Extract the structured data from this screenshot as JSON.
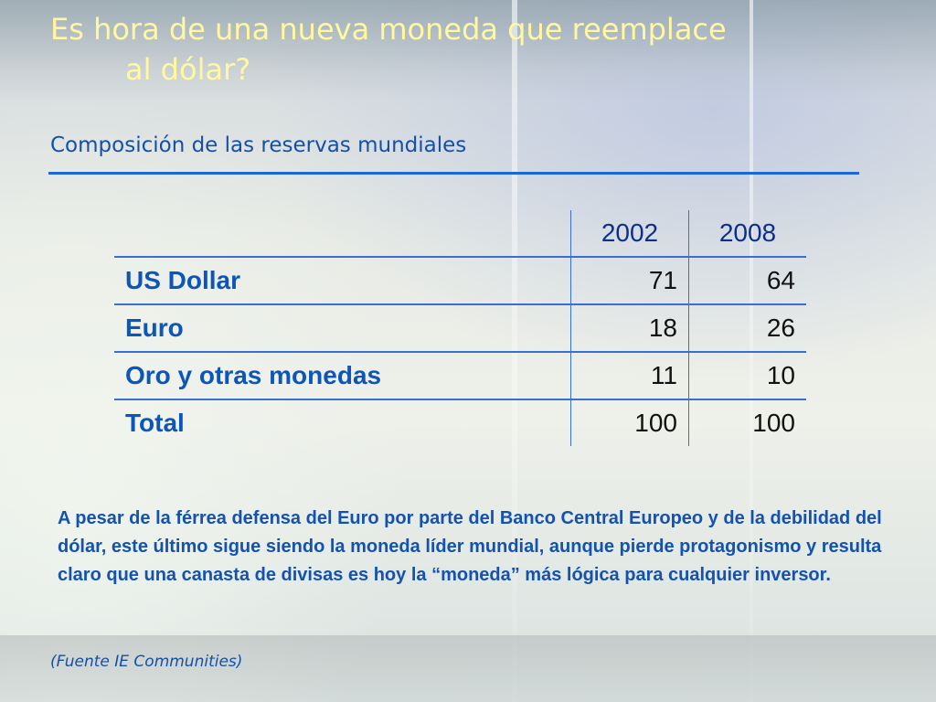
{
  "slide": {
    "title_line1": "Es hora de una nueva moneda que reemplace",
    "title_line2": "al dólar?",
    "subtitle": "Composición de las reservas mundiales",
    "table": {
      "headers": [
        "",
        "2002",
        "2008"
      ],
      "rows": [
        {
          "label": "US Dollar",
          "v2002": "71",
          "v2008": "64"
        },
        {
          "label": "Euro",
          "v2002": "18",
          "v2008": "26"
        },
        {
          "label": "Oro y otras monedas",
          "v2002": "11",
          "v2008": "10"
        },
        {
          "label": "Total",
          "v2002": "100",
          "v2008": "100"
        }
      ]
    },
    "note": "A pesar de la férrea defensa del Euro por parte del Banco Central Europeo y de la debilidad del dólar, este último sigue siendo la moneda líder mundial, aunque pierde protagonismo y resulta claro que una canasta de divisas es hoy la “moneda” más lógica para cualquier inversor.",
    "source": "(Fuente IE Communities)",
    "colors": {
      "title": "#fff8a0",
      "accent": "#1b66d8",
      "label": "#0d55b8"
    }
  }
}
